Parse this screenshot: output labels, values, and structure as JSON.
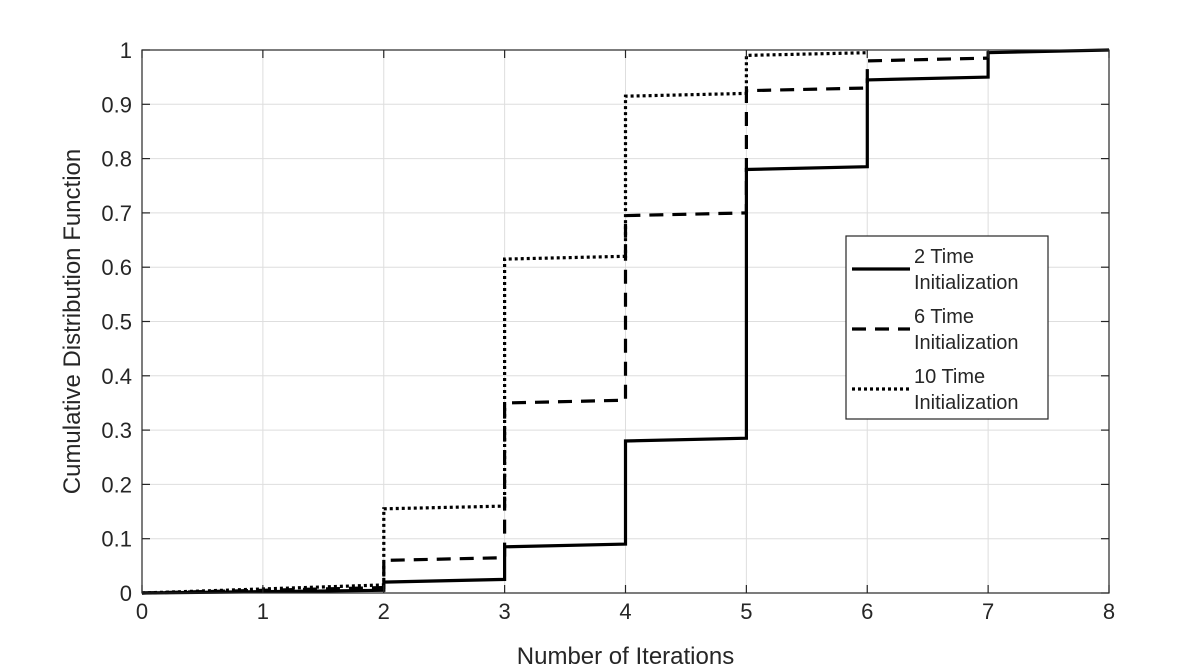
{
  "chart_data": {
    "type": "line",
    "step": true,
    "title": "",
    "xlabel": "Number of Iterations",
    "ylabel": "Cumulative Distribution Function",
    "xlim": [
      0,
      8
    ],
    "ylim": [
      0,
      1
    ],
    "xticks": [
      0,
      1,
      2,
      3,
      4,
      5,
      6,
      7,
      8
    ],
    "yticks": [
      0,
      0.1,
      0.2,
      0.3,
      0.4,
      0.5,
      0.6,
      0.7,
      0.8,
      0.9,
      1
    ],
    "grid": true,
    "legend_position": "right",
    "series": [
      {
        "name": "2 Time Initialization",
        "line_style": "solid",
        "color": "#000000",
        "points": [
          [
            0,
            0
          ],
          [
            2,
            0.005
          ],
          [
            2,
            0.02
          ],
          [
            3,
            0.025
          ],
          [
            3,
            0.085
          ],
          [
            4,
            0.09
          ],
          [
            4,
            0.28
          ],
          [
            5,
            0.285
          ],
          [
            5,
            0.78
          ],
          [
            6,
            0.785
          ],
          [
            6,
            0.945
          ],
          [
            7,
            0.95
          ],
          [
            7,
            0.995
          ],
          [
            8,
            1
          ]
        ]
      },
      {
        "name": "6 Time Initialization",
        "line_style": "dashed",
        "color": "#000000",
        "points": [
          [
            0,
            0
          ],
          [
            2,
            0.01
          ],
          [
            2,
            0.06
          ],
          [
            3,
            0.065
          ],
          [
            3,
            0.35
          ],
          [
            4,
            0.355
          ],
          [
            4,
            0.695
          ],
          [
            5,
            0.7
          ],
          [
            5,
            0.925
          ],
          [
            6,
            0.93
          ],
          [
            6,
            0.98
          ],
          [
            7,
            0.985
          ]
        ]
      },
      {
        "name": "10 Time Initialization",
        "line_style": "dotted",
        "color": "#000000",
        "points": [
          [
            0,
            0
          ],
          [
            2,
            0.015
          ],
          [
            2,
            0.155
          ],
          [
            3,
            0.16
          ],
          [
            3,
            0.615
          ],
          [
            4,
            0.62
          ],
          [
            4,
            0.915
          ],
          [
            5,
            0.92
          ],
          [
            5,
            0.99
          ],
          [
            6,
            0.995
          ]
        ]
      }
    ],
    "legend": {
      "entries": [
        [
          "2 Time",
          "Initialization"
        ],
        [
          "6 Time",
          "Initialization"
        ],
        [
          "10 Time",
          "Initialization"
        ]
      ]
    }
  }
}
